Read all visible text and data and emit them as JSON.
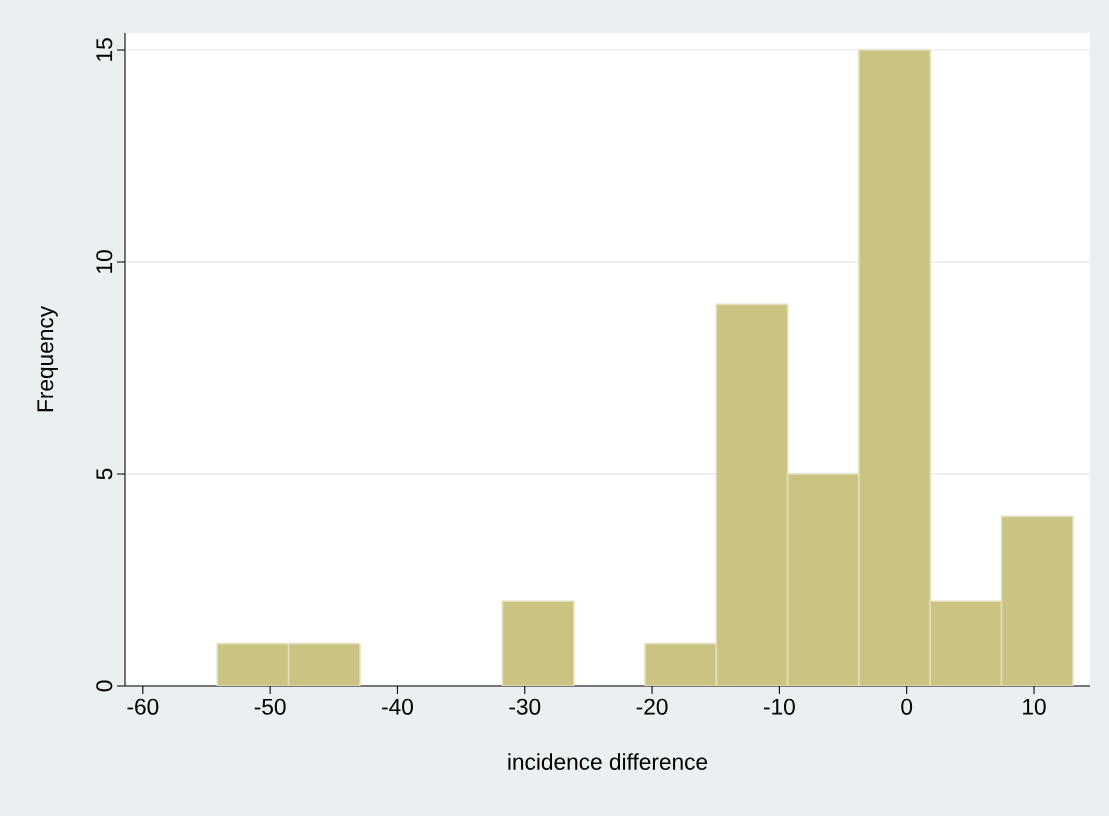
{
  "chart_data": {
    "type": "histogram",
    "xlabel": "incidence difference",
    "ylabel": "Frequency",
    "bins": [
      -54.15,
      -48.55,
      -42.95,
      -37.35,
      -31.75,
      -26.15,
      -20.55,
      -14.95,
      -9.35,
      -3.75,
      1.85,
      7.45,
      13.05
    ],
    "values": [
      1,
      1,
      0,
      0,
      2,
      0,
      1,
      9,
      5,
      15,
      2,
      4
    ],
    "color": "#cbc382",
    "xlim": [
      -61.4,
      14.4
    ],
    "ylim": [
      0,
      15.4
    ],
    "xticks": [
      -60,
      -50,
      -40,
      -30,
      -20,
      -10,
      0,
      10
    ],
    "yticks": [
      0,
      5,
      10,
      15
    ],
    "grid": "y",
    "legend": false
  }
}
